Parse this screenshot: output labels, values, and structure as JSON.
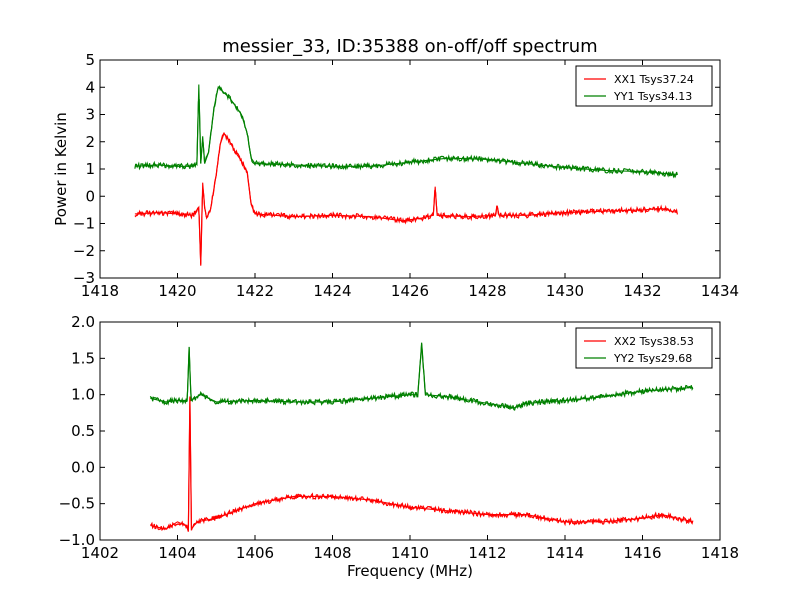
{
  "chart_data": [
    {
      "type": "line",
      "title": "messier_33, ID:35388 on-off/off spectrum",
      "xlabel": "",
      "ylabel": "Power in Kelvin",
      "xlim": [
        1418,
        1434
      ],
      "ylim": [
        -3,
        5
      ],
      "xticks": [
        1418,
        1420,
        1422,
        1424,
        1426,
        1428,
        1430,
        1432,
        1434
      ],
      "yticks": [
        -3,
        -2,
        -1,
        0,
        1,
        2,
        3,
        4,
        5
      ],
      "xtick_labels": [
        "1418",
        "1420",
        "1422",
        "1424",
        "1426",
        "1428",
        "1430",
        "1432",
        "1434"
      ],
      "ytick_labels": [
        "−3",
        "−2",
        "−1",
        "0",
        "1",
        "2",
        "3",
        "4",
        "5"
      ],
      "grid": false,
      "legend_position": "top-right",
      "series": [
        {
          "name": "XX1 Tsys37.24",
          "color": "#ff0000",
          "x": [
            1418.9,
            1419.5,
            1420.0,
            1420.4,
            1420.55,
            1420.6,
            1420.65,
            1420.7,
            1420.75,
            1420.85,
            1421.0,
            1421.1,
            1421.2,
            1421.35,
            1421.5,
            1421.65,
            1421.8,
            1421.9,
            1422.0,
            1422.5,
            1423.0,
            1424.0,
            1425.0,
            1425.8,
            1426.3,
            1426.6,
            1426.65,
            1426.7,
            1427.5,
            1428.2,
            1428.25,
            1428.3,
            1429.0,
            1430.0,
            1431.0,
            1432.0,
            1432.5,
            1432.9
          ],
          "y": [
            -0.65,
            -0.6,
            -0.65,
            -0.7,
            -0.4,
            -2.55,
            0.5,
            -0.4,
            -0.8,
            -0.5,
            0.8,
            1.9,
            2.3,
            2.0,
            1.6,
            1.3,
            0.9,
            -0.3,
            -0.65,
            -0.7,
            -0.75,
            -0.7,
            -0.75,
            -0.9,
            -0.8,
            -0.7,
            0.35,
            -0.7,
            -0.75,
            -0.7,
            -0.35,
            -0.7,
            -0.7,
            -0.6,
            -0.55,
            -0.5,
            -0.45,
            -0.6
          ]
        },
        {
          "name": "YY1 Tsys34.13",
          "color": "#008000",
          "x": [
            1418.9,
            1419.5,
            1420.0,
            1420.4,
            1420.5,
            1420.55,
            1420.6,
            1420.65,
            1420.7,
            1420.8,
            1420.95,
            1421.05,
            1421.2,
            1421.35,
            1421.5,
            1421.65,
            1421.8,
            1421.9,
            1422.0,
            1423.0,
            1424.0,
            1425.0,
            1426.0,
            1427.0,
            1428.0,
            1429.0,
            1430.0,
            1431.0,
            1432.0,
            1432.9
          ],
          "y": [
            1.1,
            1.15,
            1.1,
            1.1,
            1.2,
            4.1,
            1.2,
            2.2,
            1.2,
            1.6,
            3.3,
            4.0,
            3.8,
            3.6,
            3.3,
            3.0,
            2.3,
            1.4,
            1.2,
            1.15,
            1.1,
            1.1,
            1.25,
            1.4,
            1.35,
            1.2,
            1.05,
            0.95,
            0.9,
            0.8
          ]
        }
      ]
    },
    {
      "type": "line",
      "title": "",
      "xlabel": "Frequency (MHz)",
      "ylabel": "",
      "xlim": [
        1402,
        1418
      ],
      "ylim": [
        -1.0,
        2.0
      ],
      "xticks": [
        1402,
        1404,
        1406,
        1408,
        1410,
        1412,
        1414,
        1416,
        1418
      ],
      "yticks": [
        -1.0,
        -0.5,
        0.0,
        0.5,
        1.0,
        1.5,
        2.0
      ],
      "xtick_labels": [
        "1402",
        "1404",
        "1406",
        "1408",
        "1410",
        "1412",
        "1414",
        "1416",
        "1418"
      ],
      "ytick_labels": [
        "−1.0",
        "−0.5",
        "0.0",
        "0.5",
        "1.0",
        "1.5",
        "2.0"
      ],
      "grid": false,
      "legend_position": "top-right",
      "series": [
        {
          "name": "XX2 Tsys38.53",
          "color": "#ff0000",
          "x": [
            1403.3,
            1403.7,
            1404.0,
            1404.2,
            1404.28,
            1404.32,
            1404.36,
            1404.5,
            1405.0,
            1406.0,
            1407.0,
            1408.0,
            1409.0,
            1410.0,
            1411.0,
            1412.0,
            1413.0,
            1414.0,
            1415.0,
            1416.0,
            1416.5,
            1417.3
          ],
          "y": [
            -0.8,
            -0.85,
            -0.75,
            -0.8,
            -0.85,
            0.95,
            -0.85,
            -0.75,
            -0.7,
            -0.5,
            -0.4,
            -0.4,
            -0.45,
            -0.55,
            -0.6,
            -0.65,
            -0.65,
            -0.75,
            -0.75,
            -0.7,
            -0.65,
            -0.75
          ]
        },
        {
          "name": "YY2 Tsys29.68",
          "color": "#008000",
          "x": [
            1403.3,
            1403.7,
            1404.0,
            1404.25,
            1404.3,
            1404.35,
            1404.6,
            1405.0,
            1406.0,
            1407.0,
            1408.0,
            1409.0,
            1410.0,
            1410.2,
            1410.3,
            1410.4,
            1411.0,
            1412.0,
            1412.7,
            1413.0,
            1414.0,
            1415.0,
            1416.0,
            1417.3
          ],
          "y": [
            0.95,
            0.9,
            0.92,
            0.92,
            1.65,
            0.92,
            1.0,
            0.9,
            0.92,
            0.9,
            0.9,
            0.95,
            1.0,
            1.0,
            1.7,
            1.0,
            0.97,
            0.88,
            0.82,
            0.88,
            0.92,
            0.97,
            1.05,
            1.1
          ]
        }
      ]
    }
  ]
}
